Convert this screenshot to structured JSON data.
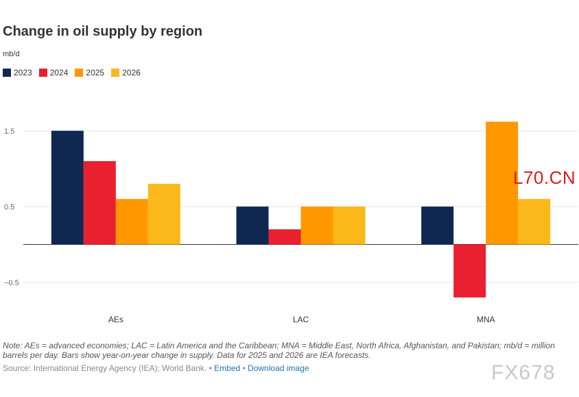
{
  "title": "Change in oil supply by region",
  "unit": "mb/d",
  "colors": {
    "2023": "#0f2851",
    "2024": "#e8202f",
    "2025": "#ff9800",
    "2026": "#fbb81a"
  },
  "chart_data": {
    "type": "bar",
    "title": "Change in oil supply by region",
    "ylabel": "mb/d",
    "xlabel": "",
    "categories": [
      "AEs",
      "LAC",
      "MNA"
    ],
    "series": [
      {
        "name": "2023",
        "values": [
          1.5,
          0.5,
          0.5
        ]
      },
      {
        "name": "2024",
        "values": [
          1.1,
          0.2,
          -0.7
        ]
      },
      {
        "name": "2025",
        "values": [
          0.6,
          0.5,
          1.62
        ]
      },
      {
        "name": "2026",
        "values": [
          0.8,
          0.5,
          0.6
        ]
      }
    ],
    "yticks": [
      {
        "value": 1.5,
        "label": "1.5"
      },
      {
        "value": 0.5,
        "label": "0.5"
      },
      {
        "value": -0.5,
        "label": "−0.5"
      }
    ],
    "ylim": [
      -0.9,
      1.8
    ],
    "grid": true,
    "legend": "top-left"
  },
  "watermark_red": "L70.CN",
  "note": "Note: AEs = advanced economies; LAC = Latin America and the Caribbean; MNA = Middle East, North Africa, Afghanistan, and Pakistan; mb/d = million barrels per day. Bars show year-on-year change in supply. Data for 2025 and 2026 are IEA forecasts.",
  "source": {
    "text": "Source: International Energy Agency (IEA); World Bank.",
    "sep1": " • ",
    "embed": "Embed",
    "sep2": " • ",
    "download": "Download image"
  },
  "watermark_gray": "FX678"
}
